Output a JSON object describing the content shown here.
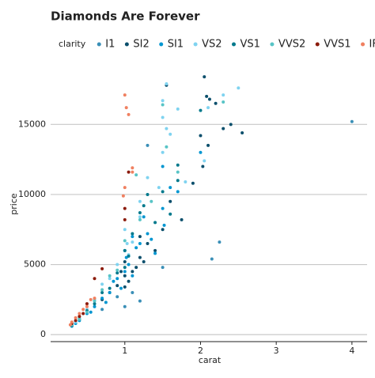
{
  "chart_data": {
    "type": "scatter",
    "title": "Diamonds Are Forever",
    "x_label": "carat",
    "y_label": "price",
    "legend_title": "clarity",
    "xlim": [
      0.02,
      4.2
    ],
    "ylim": [
      -500,
      18800
    ],
    "xticks": [
      1,
      2,
      3,
      4
    ],
    "yticks": [
      0,
      5000,
      10000,
      15000
    ],
    "grid": true,
    "series": [
      {
        "name": "I1",
        "color": "#3a8fb7",
        "x": [
          4.0,
          2.25,
          2.15,
          1.3,
          1.0,
          0.9,
          1.2,
          0.7,
          1.5,
          1.1
        ],
        "values": [
          15200,
          6600,
          5400,
          13500,
          2000,
          2700,
          2400,
          1800,
          4800,
          3000
        ]
      },
      {
        "name": "SI2",
        "color": "#0b4f6c",
        "x": [
          2.05,
          2.2,
          2.4,
          2.55,
          2.0,
          2.03,
          2.08,
          1.9,
          1.75,
          1.5,
          1.6,
          1.3,
          1.2,
          1.1,
          1.0,
          1.0,
          0.9,
          0.8,
          0.7,
          1.05,
          1.15,
          1.25,
          1.4,
          2.1,
          2.3,
          1.55,
          2.12,
          1.0,
          0.95,
          1.2
        ],
        "values": [
          18400,
          16500,
          15000,
          14400,
          14200,
          12000,
          17000,
          10800,
          8200,
          7500,
          9500,
          6500,
          5500,
          4500,
          4200,
          5200,
          3500,
          3000,
          2500,
          3800,
          4800,
          5200,
          6000,
          13500,
          14700,
          17800,
          16800,
          3400,
          4500,
          7000
        ]
      },
      {
        "name": "SI1",
        "color": "#0096d1",
        "x": [
          1.0,
          1.1,
          1.05,
          0.9,
          0.8,
          0.7,
          0.6,
          0.5,
          0.4,
          0.3,
          1.2,
          1.3,
          1.5,
          1.5,
          1.6,
          1.7,
          2.0,
          1.1,
          1.25,
          0.95,
          1.0,
          1.4,
          0.75,
          0.55,
          0.35,
          1.15,
          1.52,
          1.02,
          0.85,
          1.35
        ],
        "values": [
          6000,
          7000,
          5000,
          4000,
          3000,
          2600,
          2000,
          1500,
          1000,
          600,
          6500,
          7200,
          9000,
          12000,
          10500,
          10200,
          13000,
          4200,
          8400,
          3300,
          4500,
          5800,
          2300,
          1600,
          800,
          6200,
          7800,
          5500,
          3800,
          6800
        ]
      },
      {
        "name": "VS2",
        "color": "#7fd3f0",
        "x": [
          1.55,
          1.7,
          2.5,
          2.3,
          1.5,
          1.5,
          1.6,
          2.1,
          1.8,
          1.5,
          1.3,
          1.2,
          1.0,
          0.9,
          0.7,
          0.5,
          0.4,
          0.3,
          1.1,
          2.05,
          1.55,
          1.2,
          0.8,
          0.6,
          1.03,
          1.45,
          0.35,
          1.05
        ],
        "values": [
          17900,
          16100,
          17600,
          17100,
          16700,
          15500,
          14300,
          16200,
          10900,
          13000,
          11200,
          9500,
          7500,
          5000,
          3600,
          1800,
          1200,
          700,
          6600,
          12400,
          14700,
          8400,
          4000,
          2500,
          6500,
          10500,
          900,
          5700
        ]
      },
      {
        "name": "VS1",
        "color": "#00798c",
        "x": [
          1.7,
          1.5,
          1.3,
          1.25,
          1.2,
          1.1,
          1.0,
          0.9,
          0.7,
          0.5,
          0.3,
          1.6,
          1.4,
          1.05,
          0.8,
          0.6,
          2.0,
          1.7,
          1.0,
          0.4
        ],
        "values": [
          12100,
          10200,
          10000,
          9200,
          8700,
          7200,
          6000,
          4400,
          3000,
          1700,
          650,
          8600,
          8000,
          5600,
          3300,
          2200,
          16000,
          11000,
          4800,
          1100
        ]
      },
      {
        "name": "VVS2",
        "color": "#58c4c6",
        "x": [
          1.5,
          1.7,
          1.35,
          1.2,
          1.0,
          0.8,
          0.6,
          0.4,
          0.3,
          0.5,
          0.7,
          1.15,
          2.3,
          1.55,
          0.9
        ],
        "values": [
          16400,
          11600,
          9500,
          8200,
          6700,
          4200,
          2400,
          1100,
          700,
          1600,
          3200,
          11400,
          16600,
          13400,
          4600
        ]
      },
      {
        "name": "VVS1",
        "color": "#8b1a0a",
        "x": [
          1.05,
          1.0,
          1.0,
          0.7,
          0.6,
          0.5,
          0.4,
          0.3,
          0.35,
          0.45
        ],
        "values": [
          11600,
          9000,
          8200,
          4700,
          4000,
          2200,
          1300,
          800,
          1000,
          1500
        ]
      },
      {
        "name": "IF",
        "color": "#f08060",
        "x": [
          1.0,
          1.02,
          1.05,
          1.1,
          1.1,
          1.0,
          0.98,
          0.5,
          0.45,
          0.4,
          0.35,
          0.3,
          0.28,
          0.55,
          0.6
        ],
        "values": [
          17100,
          16200,
          15700,
          11900,
          11600,
          10500,
          9900,
          2000,
          1800,
          1500,
          1200,
          900,
          700,
          2500,
          2600
        ]
      }
    ]
  }
}
